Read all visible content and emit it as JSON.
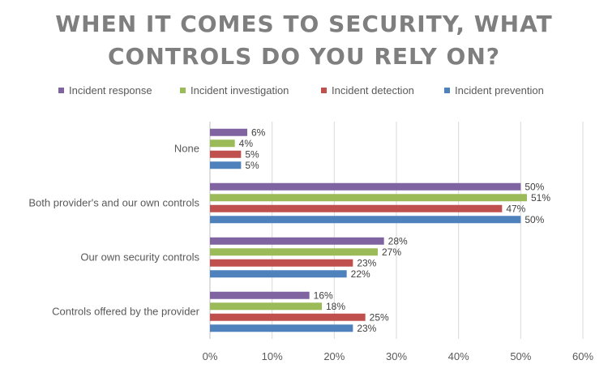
{
  "chart_data": {
    "type": "bar",
    "orientation": "horizontal",
    "title_line1": "WHEN IT COMES TO SECURITY, WHAT",
    "title_line2": "CONTROLS DO YOU RELY ON?",
    "categories": [
      "None",
      "Both provider's and our own controls",
      "Our own security controls",
      "Controls offered by the provider"
    ],
    "series": [
      {
        "name": "Incident response",
        "color": "#8064a2",
        "values": [
          6,
          50,
          28,
          16
        ]
      },
      {
        "name": "Incident investigation",
        "color": "#9bbb59",
        "values": [
          4,
          51,
          27,
          18
        ]
      },
      {
        "name": "Incident detection",
        "color": "#c0504d",
        "values": [
          5,
          47,
          23,
          25
        ]
      },
      {
        "name": "Incident prevention",
        "color": "#4f81bd",
        "values": [
          5,
          50,
          22,
          23
        ]
      }
    ],
    "xlim": [
      0,
      60
    ],
    "x_ticks": [
      "0%",
      "10%",
      "20%",
      "30%",
      "40%",
      "50%",
      "60%"
    ],
    "value_suffix": "%",
    "grid": true,
    "legend_position": "top"
  }
}
